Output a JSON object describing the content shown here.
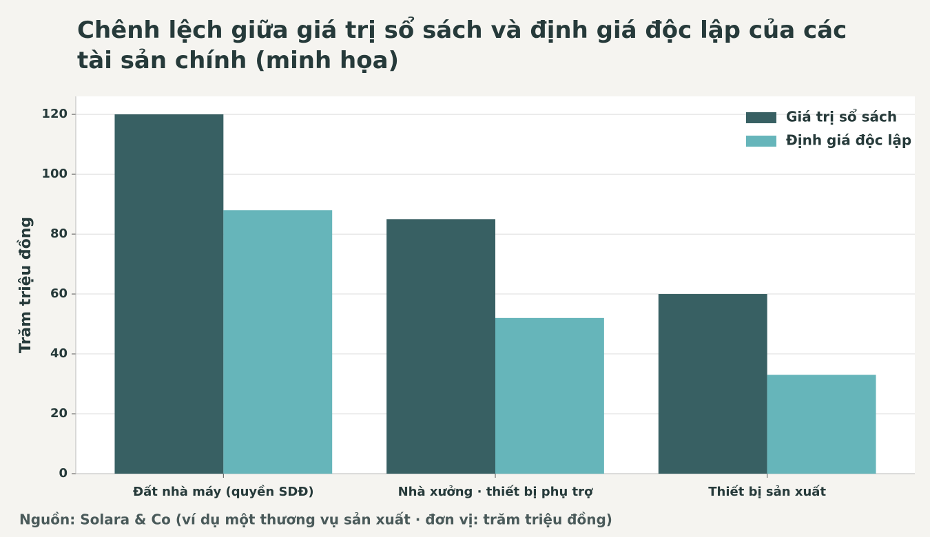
{
  "chart_data": {
    "type": "bar",
    "title": "Chênh lệch giữa giá trị sổ sách và định giá độc lập của các tài sản chính (minh họa)",
    "y_label": "Trăm triệu đồng",
    "source": "Nguồn: Solara & Co (ví dụ một thương vụ sản xuất · đơn vị: trăm triệu đồng)",
    "categories": [
      "Đất nhà máy (quyền SDĐ)",
      "Nhà xưởng · thiết bị phụ trợ",
      "Thiết bị sản xuất"
    ],
    "series": [
      {
        "name": "Giá trị sổ sách",
        "color": "#386063",
        "values": [
          120,
          85,
          60
        ]
      },
      {
        "name": "Định giá độc lập",
        "color": "#66b5ba",
        "values": [
          88,
          52,
          33
        ]
      }
    ],
    "ylim": [
      0,
      126
    ],
    "yticks": [
      0,
      20,
      40,
      60,
      80,
      100,
      120
    ],
    "grid": true,
    "legend": "top-right"
  }
}
